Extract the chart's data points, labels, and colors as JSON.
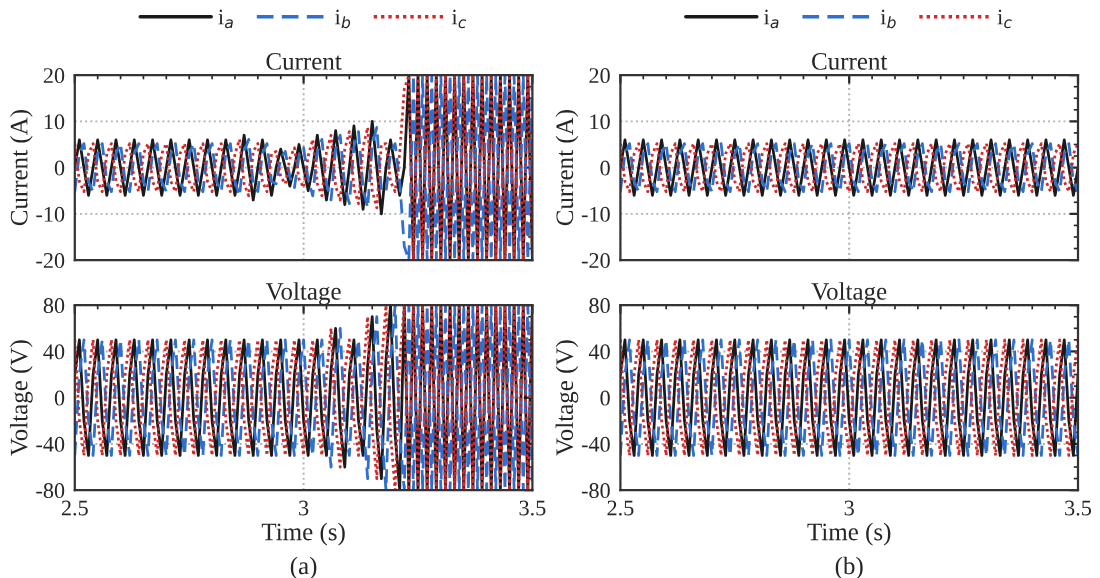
{
  "chart_data": [
    {
      "type": "line",
      "title": "Current",
      "ylabel": "Current (A)",
      "xlim": [
        2.5,
        3.5
      ],
      "xticks": [
        2.5,
        3,
        3.5
      ],
      "ylim": [
        -20,
        20
      ],
      "yticks": [
        -20,
        -10,
        0,
        10,
        20
      ],
      "grid": true,
      "legend": "top",
      "tick_labels": "y",
      "x": [
        2.5,
        2.51,
        2.52,
        2.53,
        2.54,
        2.55,
        2.56,
        2.57,
        2.58,
        2.59,
        2.6,
        2.61,
        2.62,
        2.63,
        2.64,
        2.65,
        2.66,
        2.67,
        2.68,
        2.69,
        2.7,
        2.71,
        2.72,
        2.73,
        2.74,
        2.75,
        2.76,
        2.77,
        2.78,
        2.79,
        2.8,
        2.81,
        2.82,
        2.83,
        2.84,
        2.85,
        2.86,
        2.87,
        2.88,
        2.89,
        2.9,
        2.91,
        2.92,
        2.93,
        2.94,
        2.95,
        2.96,
        2.97,
        2.98,
        2.99,
        3,
        3.01,
        3.02,
        3.03,
        3.04,
        3.05,
        3.06,
        3.07,
        3.08,
        3.09,
        3.1,
        3.11,
        3.12,
        3.13,
        3.14,
        3.15,
        3.16,
        3.17,
        3.18,
        3.19,
        3.2,
        3.21,
        3.22,
        3.23,
        3.24,
        3.25,
        3.26,
        3.27,
        3.28,
        3.29,
        3.3,
        3.31,
        3.32,
        3.33,
        3.34,
        3.35,
        3.36,
        3.37,
        3.38,
        3.39,
        3.4,
        3.41,
        3.42,
        3.43,
        3.44,
        3.45,
        3.46,
        3.47,
        3.48,
        3.49,
        3.5
      ],
      "series": [
        {
          "name": "i$_{a}$",
          "color": "#1a1a1a",
          "line_style": "solid",
          "values": [
            0,
            6,
            0,
            -6,
            0,
            6,
            0,
            -6,
            0,
            6,
            0,
            -6,
            0,
            6,
            0,
            -6,
            0,
            6,
            0,
            -6,
            0,
            6,
            0,
            -6,
            0,
            6,
            0,
            -6,
            0,
            6,
            0,
            -6,
            0,
            6,
            0,
            -6,
            0,
            7,
            0,
            -7,
            0,
            6,
            0,
            -6,
            0,
            4,
            0,
            -4,
            0,
            5,
            0,
            -5,
            0,
            7,
            0,
            -7,
            0,
            8,
            0,
            -8,
            0,
            9,
            0,
            -9,
            0,
            10,
            0,
            -10,
            0,
            6,
            0,
            -6,
            0,
            20,
            -20,
            20,
            -20,
            20,
            -20,
            20,
            -20,
            20,
            -20,
            20,
            -20,
            20,
            -20,
            20,
            -20,
            20,
            -20,
            20,
            -20,
            20,
            -20,
            20,
            -20,
            20,
            -20,
            20,
            -20
          ]
        },
        {
          "name": "i$_{b}$",
          "color": "#2f6fcf",
          "line_style": "dashed",
          "values": [
            -5.2,
            3,
            5.2,
            -3,
            -5.2,
            3,
            5.2,
            -3,
            -5.2,
            3,
            5.2,
            -3,
            -5.2,
            3,
            5.2,
            -3,
            -5.2,
            3,
            5.2,
            -3,
            -5.2,
            3,
            5.2,
            -3,
            -5.2,
            3,
            5.2,
            -3,
            -5.2,
            3,
            5.2,
            -3,
            -5.2,
            3,
            5.2,
            -3,
            -6.1,
            3.5,
            6.1,
            -3.5,
            -5.2,
            3,
            5.2,
            -3,
            -3.5,
            2,
            3.5,
            -2,
            -4.3,
            2.5,
            4.3,
            -2.5,
            -6.1,
            3.5,
            6.1,
            -3.5,
            -7,
            4,
            7,
            -4,
            -7.8,
            4.5,
            7.8,
            -4.5,
            -8.7,
            5,
            8.7,
            -5,
            -5.2,
            3,
            5.2,
            -3,
            -17,
            -20,
            20,
            -20,
            20,
            -20,
            20,
            -20,
            20,
            -20,
            20,
            -20,
            20,
            -20,
            20,
            -20,
            20,
            -20,
            20,
            -20,
            20,
            -20,
            20,
            -20,
            20,
            -20,
            20,
            -20,
            20
          ]
        },
        {
          "name": "i$_{c}$",
          "color": "#d62728",
          "line_style": "dotted",
          "values": [
            5.2,
            -3,
            -5.2,
            3,
            5.2,
            -3,
            -5.2,
            3,
            5.2,
            -3,
            -5.2,
            3,
            5.2,
            -3,
            -5.2,
            3,
            5.2,
            -3,
            -5.2,
            3,
            5.2,
            -3,
            -5.2,
            3,
            5.2,
            -3,
            -5.2,
            3,
            5.2,
            -3,
            -5.2,
            3,
            5.2,
            -3,
            -5.2,
            3,
            6.1,
            -3.5,
            -6.1,
            3.5,
            5.2,
            -3,
            -5.2,
            3,
            3.5,
            -2,
            -3.5,
            2,
            4.3,
            -2.5,
            -4.3,
            2.5,
            6.1,
            -3.5,
            -6.1,
            3.5,
            7,
            -4,
            -7,
            4,
            7.8,
            -4.5,
            -7.8,
            4.5,
            8.7,
            -5,
            -8.7,
            5,
            5.2,
            -3,
            -5.2,
            3,
            17,
            20,
            -20,
            20,
            -20,
            20,
            -20,
            20,
            -20,
            20,
            -20,
            20,
            -20,
            20,
            -20,
            20,
            -20,
            20,
            -20,
            20,
            -20,
            20,
            -20,
            20,
            -20,
            20,
            -20,
            20,
            -20
          ]
        }
      ]
    },
    {
      "type": "line",
      "title": "Voltage",
      "xlabel": "Time (s)",
      "ylabel": "Voltage (V)",
      "xlim": [
        2.5,
        3.5
      ],
      "xticks": [
        2.5,
        3,
        3.5
      ],
      "ylim": [
        -80,
        80
      ],
      "yticks": [
        -80,
        -40,
        0,
        40,
        80
      ],
      "grid": true,
      "annotations": [
        "(a)"
      ],
      "x": [
        2.5,
        2.51,
        2.52,
        2.53,
        2.54,
        2.55,
        2.56,
        2.57,
        2.58,
        2.59,
        2.6,
        2.61,
        2.62,
        2.63,
        2.64,
        2.65,
        2.66,
        2.67,
        2.68,
        2.69,
        2.7,
        2.71,
        2.72,
        2.73,
        2.74,
        2.75,
        2.76,
        2.77,
        2.78,
        2.79,
        2.8,
        2.81,
        2.82,
        2.83,
        2.84,
        2.85,
        2.86,
        2.87,
        2.88,
        2.89,
        2.9,
        2.91,
        2.92,
        2.93,
        2.94,
        2.95,
        2.96,
        2.97,
        2.98,
        2.99,
        3,
        3.01,
        3.02,
        3.03,
        3.04,
        3.05,
        3.06,
        3.07,
        3.08,
        3.09,
        3.1,
        3.11,
        3.12,
        3.13,
        3.14,
        3.15,
        3.16,
        3.17,
        3.18,
        3.19,
        3.2,
        3.21,
        3.22,
        3.23,
        3.24,
        3.25,
        3.26,
        3.27,
        3.28,
        3.29,
        3.3,
        3.31,
        3.32,
        3.33,
        3.34,
        3.35,
        3.36,
        3.37,
        3.38,
        3.39,
        3.4,
        3.41,
        3.42,
        3.43,
        3.44,
        3.45,
        3.46,
        3.47,
        3.48,
        3.49,
        3.5
      ],
      "series": [
        {
          "color": "#1a1a1a",
          "line_style": "solid",
          "values": [
            20,
            50,
            -20,
            -50,
            20,
            50,
            -20,
            -50,
            20,
            50,
            -20,
            -50,
            20,
            50,
            -20,
            -50,
            20,
            50,
            -20,
            -50,
            20,
            50,
            -20,
            -50,
            20,
            50,
            -20,
            -50,
            20,
            50,
            -20,
            -50,
            20,
            50,
            -20,
            -50,
            20,
            50,
            -20,
            -50,
            20,
            50,
            -20,
            -50,
            20,
            50,
            -20,
            -50,
            20,
            50,
            -20,
            -50,
            20,
            50,
            -20,
            -50,
            24,
            60,
            -24,
            -60,
            20,
            50,
            -20,
            -50,
            28,
            70,
            -28,
            -70,
            32,
            80,
            -32,
            -80,
            80,
            -80,
            80,
            -80,
            80,
            -80,
            80,
            -80,
            80,
            -80,
            80,
            -80,
            80,
            -80,
            80,
            -80,
            80,
            -80,
            80,
            -80,
            80,
            -80,
            80,
            -80,
            80,
            -80,
            80,
            -80,
            80
          ]
        },
        {
          "color": "#2f6fcf",
          "line_style": "dashed",
          "values": [
            -50,
            20,
            50,
            -20,
            -50,
            20,
            50,
            -20,
            -50,
            20,
            50,
            -20,
            -50,
            20,
            50,
            -20,
            -50,
            20,
            50,
            -20,
            -50,
            20,
            50,
            -20,
            -50,
            20,
            50,
            -20,
            -50,
            20,
            50,
            -20,
            -50,
            20,
            50,
            -20,
            -50,
            20,
            50,
            -20,
            -50,
            20,
            50,
            -20,
            -50,
            20,
            50,
            -20,
            -50,
            20,
            50,
            -20,
            -50,
            20,
            50,
            -20,
            -60,
            24,
            60,
            -24,
            -50,
            20,
            50,
            -20,
            -70,
            28,
            70,
            -28,
            -80,
            32,
            80,
            -32,
            -80,
            80,
            -80,
            80,
            -80,
            80,
            -80,
            80,
            -80,
            80,
            -80,
            80,
            -80,
            80,
            -80,
            80,
            -80,
            80,
            -80,
            80,
            -80,
            80,
            -80,
            80,
            -80,
            80,
            -80,
            80,
            -80
          ]
        },
        {
          "color": "#d62728",
          "line_style": "dotted",
          "values": [
            50,
            -20,
            -50,
            20,
            50,
            -20,
            -50,
            20,
            50,
            -20,
            -50,
            20,
            50,
            -20,
            -50,
            20,
            50,
            -20,
            -50,
            20,
            50,
            -20,
            -50,
            20,
            50,
            -20,
            -50,
            20,
            50,
            -20,
            -50,
            20,
            50,
            -20,
            -50,
            20,
            50,
            -20,
            -50,
            20,
            50,
            -20,
            -50,
            20,
            50,
            -20,
            -50,
            20,
            50,
            -20,
            -50,
            20,
            50,
            -20,
            -50,
            20,
            60,
            -24,
            -60,
            24,
            50,
            -20,
            -50,
            20,
            70,
            -28,
            -70,
            28,
            80,
            -32,
            -80,
            32,
            80,
            -80,
            80,
            -80,
            80,
            -80,
            80,
            -80,
            80,
            -80,
            80,
            -80,
            80,
            -80,
            80,
            -80,
            80,
            -80,
            80,
            -80,
            80,
            -80,
            80,
            -80,
            80,
            -80,
            80,
            -80,
            80
          ]
        }
      ]
    },
    {
      "type": "line",
      "title": "Current",
      "ylabel": "Current (A)",
      "xlim": [
        2.5,
        3.5
      ],
      "xticks": [
        2.5,
        3,
        3.5
      ],
      "ylim": [
        -20,
        20
      ],
      "yticks": [
        -20,
        -10,
        0,
        10,
        20
      ],
      "grid": true,
      "legend": "top",
      "tick_labels": "y",
      "x": [
        2.5,
        2.51,
        2.52,
        2.53,
        2.54,
        2.55,
        2.56,
        2.57,
        2.58,
        2.59,
        2.6,
        2.61,
        2.62,
        2.63,
        2.64,
        2.65,
        2.66,
        2.67,
        2.68,
        2.69,
        2.7,
        2.71,
        2.72,
        2.73,
        2.74,
        2.75,
        2.76,
        2.77,
        2.78,
        2.79,
        2.8,
        2.81,
        2.82,
        2.83,
        2.84,
        2.85,
        2.86,
        2.87,
        2.88,
        2.89,
        2.9,
        2.91,
        2.92,
        2.93,
        2.94,
        2.95,
        2.96,
        2.97,
        2.98,
        2.99,
        3,
        3.01,
        3.02,
        3.03,
        3.04,
        3.05,
        3.06,
        3.07,
        3.08,
        3.09,
        3.1,
        3.11,
        3.12,
        3.13,
        3.14,
        3.15,
        3.16,
        3.17,
        3.18,
        3.19,
        3.2,
        3.21,
        3.22,
        3.23,
        3.24,
        3.25,
        3.26,
        3.27,
        3.28,
        3.29,
        3.3,
        3.31,
        3.32,
        3.33,
        3.34,
        3.35,
        3.36,
        3.37,
        3.38,
        3.39,
        3.4,
        3.41,
        3.42,
        3.43,
        3.44,
        3.45,
        3.46,
        3.47,
        3.48,
        3.49,
        3.5
      ],
      "series": [
        {
          "name": "i$_{a}$",
          "color": "#1a1a1a",
          "line_style": "solid",
          "values": [
            0,
            6,
            0,
            -6,
            0,
            6,
            0,
            -6,
            0,
            6,
            0,
            -6,
            0,
            6,
            0,
            -6,
            0,
            6,
            0,
            -6,
            0,
            6,
            0,
            -6,
            0,
            6,
            0,
            -6,
            0,
            6,
            0,
            -6,
            0,
            6,
            0,
            -6,
            0,
            6,
            0,
            -6,
            0,
            6,
            0,
            -6,
            0,
            6,
            0,
            -6,
            0,
            6,
            0,
            -6,
            0,
            6,
            0,
            -6,
            0,
            6,
            0,
            -6,
            0,
            6,
            0,
            -6,
            0,
            6,
            0,
            -6,
            0,
            6,
            0,
            -6,
            0,
            6,
            0,
            -6,
            0,
            6,
            0,
            -6,
            0,
            6,
            0,
            -6,
            0,
            6,
            0,
            -6,
            0,
            6,
            0,
            -6,
            0,
            6,
            0,
            -6,
            0,
            6,
            0,
            -6,
            0
          ]
        },
        {
          "name": "i$_{b}$",
          "color": "#2f6fcf",
          "line_style": "dashed",
          "values": [
            -5.2,
            3,
            5.2,
            -3,
            -5.2,
            3,
            5.2,
            -3,
            -5.2,
            3,
            5.2,
            -3,
            -5.2,
            3,
            5.2,
            -3,
            -5.2,
            3,
            5.2,
            -3,
            -5.2,
            3,
            5.2,
            -3,
            -5.2,
            3,
            5.2,
            -3,
            -5.2,
            3,
            5.2,
            -3,
            -5.2,
            3,
            5.2,
            -3,
            -5.2,
            3,
            5.2,
            -3,
            -5.2,
            3,
            5.2,
            -3,
            -5.2,
            3,
            5.2,
            -3,
            -5.2,
            3,
            5.2,
            -3,
            -5.2,
            3,
            5.2,
            -3,
            -5.2,
            3,
            5.2,
            -3,
            -5.2,
            3,
            5.2,
            -3,
            -5.2,
            3,
            5.2,
            -3,
            -5.2,
            3,
            5.2,
            -3,
            -5.2,
            3,
            5.2,
            -3,
            -5.2,
            3,
            5.2,
            -3,
            -5.2,
            3,
            5.2,
            -3,
            -5.2,
            3,
            5.2,
            -3,
            -5.2,
            3,
            5.2,
            -3,
            -5.2,
            3,
            5.2,
            -3,
            -5.2,
            3,
            5.2,
            -3,
            -5.2
          ]
        },
        {
          "name": "i$_{c}$",
          "color": "#d62728",
          "line_style": "dotted",
          "values": [
            5.2,
            -3,
            -5.2,
            3,
            5.2,
            -3,
            -5.2,
            3,
            5.2,
            -3,
            -5.2,
            3,
            5.2,
            -3,
            -5.2,
            3,
            5.2,
            -3,
            -5.2,
            3,
            5.2,
            -3,
            -5.2,
            3,
            5.2,
            -3,
            -5.2,
            3,
            5.2,
            -3,
            -5.2,
            3,
            5.2,
            -3,
            -5.2,
            3,
            5.2,
            -3,
            -5.2,
            3,
            5.2,
            -3,
            -5.2,
            3,
            5.2,
            -3,
            -5.2,
            3,
            5.2,
            -3,
            -5.2,
            3,
            5.2,
            -3,
            -5.2,
            3,
            5.2,
            -3,
            -5.2,
            3,
            5.2,
            -3,
            -5.2,
            3,
            5.2,
            -3,
            -5.2,
            3,
            5.2,
            -3,
            -5.2,
            3,
            5.2,
            -3,
            -5.2,
            3,
            5.2,
            -3,
            -5.2,
            3,
            5.2,
            -3,
            -5.2,
            3,
            5.2,
            -3,
            -5.2,
            3,
            5.2,
            -3,
            -5.2,
            3,
            5.2,
            -3,
            -5.2,
            3,
            5.2,
            -3,
            -5.2,
            3,
            5.2
          ]
        }
      ]
    },
    {
      "type": "line",
      "title": "Voltage",
      "xlabel": "Time (s)",
      "ylabel": "Voltage (V)",
      "xlim": [
        2.5,
        3.5
      ],
      "xticks": [
        2.5,
        3,
        3.5
      ],
      "ylim": [
        -80,
        80
      ],
      "yticks": [
        -80,
        -40,
        0,
        40,
        80
      ],
      "grid": true,
      "annotations": [
        "(b)"
      ],
      "x": [
        2.5,
        2.51,
        2.52,
        2.53,
        2.54,
        2.55,
        2.56,
        2.57,
        2.58,
        2.59,
        2.6,
        2.61,
        2.62,
        2.63,
        2.64,
        2.65,
        2.66,
        2.67,
        2.68,
        2.69,
        2.7,
        2.71,
        2.72,
        2.73,
        2.74,
        2.75,
        2.76,
        2.77,
        2.78,
        2.79,
        2.8,
        2.81,
        2.82,
        2.83,
        2.84,
        2.85,
        2.86,
        2.87,
        2.88,
        2.89,
        2.9,
        2.91,
        2.92,
        2.93,
        2.94,
        2.95,
        2.96,
        2.97,
        2.98,
        2.99,
        3,
        3.01,
        3.02,
        3.03,
        3.04,
        3.05,
        3.06,
        3.07,
        3.08,
        3.09,
        3.1,
        3.11,
        3.12,
        3.13,
        3.14,
        3.15,
        3.16,
        3.17,
        3.18,
        3.19,
        3.2,
        3.21,
        3.22,
        3.23,
        3.24,
        3.25,
        3.26,
        3.27,
        3.28,
        3.29,
        3.3,
        3.31,
        3.32,
        3.33,
        3.34,
        3.35,
        3.36,
        3.37,
        3.38,
        3.39,
        3.4,
        3.41,
        3.42,
        3.43,
        3.44,
        3.45,
        3.46,
        3.47,
        3.48,
        3.49,
        3.5
      ],
      "series": [
        {
          "color": "#1a1a1a",
          "line_style": "solid",
          "values": [
            20,
            50,
            -20,
            -50,
            20,
            50,
            -20,
            -50,
            20,
            50,
            -20,
            -50,
            20,
            50,
            -20,
            -50,
            20,
            50,
            -20,
            -50,
            20,
            50,
            -20,
            -50,
            20,
            50,
            -20,
            -50,
            20,
            50,
            -20,
            -50,
            20,
            50,
            -20,
            -50,
            20,
            50,
            -20,
            -50,
            20,
            50,
            -20,
            -50,
            20,
            50,
            -20,
            -50,
            20,
            50,
            -20,
            -50,
            20,
            50,
            -20,
            -50,
            20,
            50,
            -20,
            -50,
            20,
            50,
            -20,
            -50,
            20,
            50,
            -20,
            -50,
            20,
            50,
            -20,
            -50,
            20,
            50,
            -20,
            -50,
            20,
            50,
            -20,
            -50,
            20,
            50,
            -20,
            -50,
            20,
            50,
            -20,
            -50,
            20,
            50,
            -20,
            -50,
            20,
            50,
            -20,
            -50,
            20,
            50,
            -20,
            -50,
            20
          ]
        },
        {
          "color": "#2f6fcf",
          "line_style": "dashed",
          "values": [
            -50,
            20,
            50,
            -20,
            -50,
            20,
            50,
            -20,
            -50,
            20,
            50,
            -20,
            -50,
            20,
            50,
            -20,
            -50,
            20,
            50,
            -20,
            -50,
            20,
            50,
            -20,
            -50,
            20,
            50,
            -20,
            -50,
            20,
            50,
            -20,
            -50,
            20,
            50,
            -20,
            -50,
            20,
            50,
            -20,
            -50,
            20,
            50,
            -20,
            -50,
            20,
            50,
            -20,
            -50,
            20,
            50,
            -20,
            -50,
            20,
            50,
            -20,
            -50,
            20,
            50,
            -20,
            -50,
            20,
            50,
            -20,
            -50,
            20,
            50,
            -20,
            -50,
            20,
            50,
            -20,
            -50,
            20,
            50,
            -20,
            -50,
            20,
            50,
            -20,
            -50,
            20,
            50,
            -20,
            -50,
            20,
            50,
            -20,
            -50,
            20,
            50,
            -20,
            -50,
            20,
            50,
            -20,
            -50,
            20,
            50,
            -20,
            -50
          ]
        },
        {
          "color": "#d62728",
          "line_style": "dotted",
          "values": [
            50,
            -20,
            -50,
            20,
            50,
            -20,
            -50,
            20,
            50,
            -20,
            -50,
            20,
            50,
            -20,
            -50,
            20,
            50,
            -20,
            -50,
            20,
            50,
            -20,
            -50,
            20,
            50,
            -20,
            -50,
            20,
            50,
            -20,
            -50,
            20,
            50,
            -20,
            -50,
            20,
            50,
            -20,
            -50,
            20,
            50,
            -20,
            -50,
            20,
            50,
            -20,
            -50,
            20,
            50,
            -20,
            -50,
            20,
            50,
            -20,
            -50,
            20,
            50,
            -20,
            -50,
            20,
            50,
            -20,
            -50,
            20,
            50,
            -20,
            -50,
            20,
            50,
            -20,
            -50,
            20,
            50,
            -20,
            -50,
            20,
            50,
            -20,
            -50,
            20,
            50,
            -20,
            -50,
            20,
            50,
            -20,
            -50,
            20,
            50,
            -20,
            -50,
            20,
            50,
            -20,
            -50,
            20,
            50,
            -20,
            -50,
            20,
            50
          ]
        }
      ]
    }
  ]
}
